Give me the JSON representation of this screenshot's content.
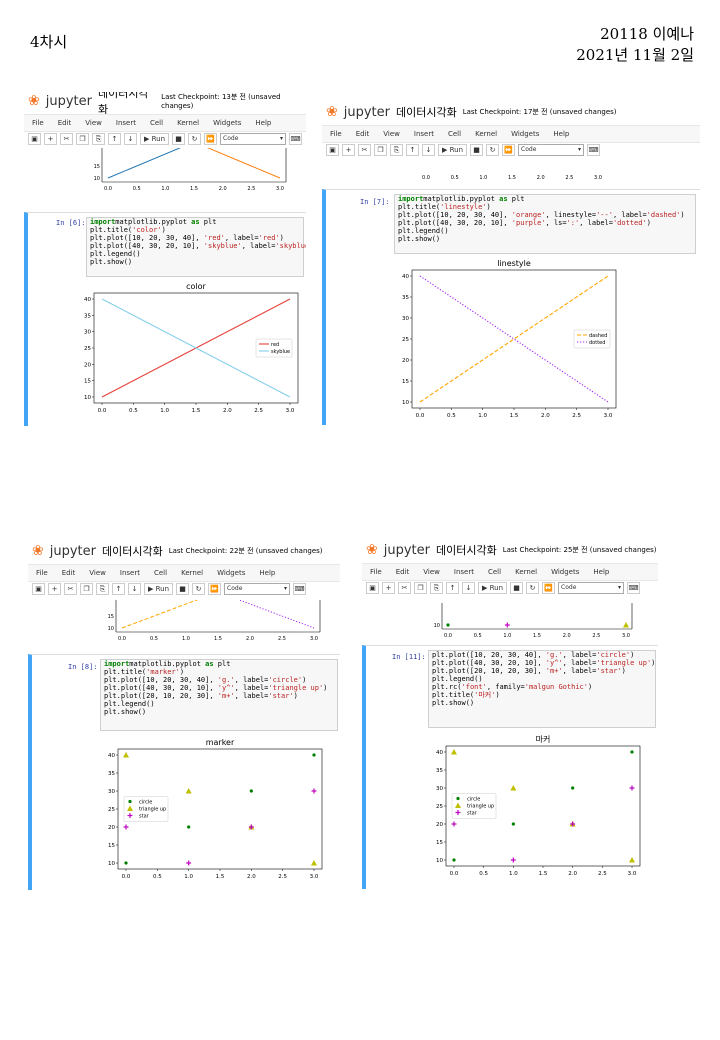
{
  "header": {
    "left": "4차시",
    "right_line1": "20118 이예나",
    "right_line2": "2021년 11월 2일"
  },
  "jupyter": {
    "logo_text": "jupyter",
    "menus": [
      "File",
      "Edit",
      "View",
      "Insert",
      "Cell",
      "Kernel",
      "Widgets",
      "Help"
    ],
    "run_label": "Run",
    "cell_type": "Code"
  },
  "panels": [
    {
      "notebook_title": "데이터시각화",
      "checkpoint": "Last Checkpoint: 13분 전  (unsaved changes)",
      "prompt": "In [6]:",
      "code": [
        [
          [
            "kw",
            "import"
          ],
          [
            "",
            "matplotlib.pyplot "
          ],
          [
            "kw",
            "as"
          ],
          [
            "",
            " plt"
          ]
        ],
        [
          [
            "",
            "plt.title("
          ],
          [
            "str",
            "'color'"
          ],
          [
            "",
            ")"
          ]
        ],
        [
          [
            "",
            "plt.plot([10, 20, 30, 40], "
          ],
          [
            "str",
            "'red'"
          ],
          [
            "",
            ", label="
          ],
          [
            "str",
            "'red'"
          ],
          [
            "",
            ")"
          ]
        ],
        [
          [
            "",
            "plt.plot([40, 30, 20, 10], "
          ],
          [
            "str",
            "'skyblue'"
          ],
          [
            "",
            ", label="
          ],
          [
            "str",
            "'skyblue'"
          ],
          [
            "",
            ")"
          ]
        ],
        [
          [
            "",
            "plt.legend()"
          ]
        ],
        [
          [
            "",
            "plt.show()"
          ]
        ]
      ]
    },
    {
      "notebook_title": "데이터시각화",
      "checkpoint": "Last Checkpoint: 17분 전  (unsaved changes)",
      "prompt": "In [7]:",
      "code": [
        [
          [
            "kw",
            "import"
          ],
          [
            "",
            "matplotlib.pyplot "
          ],
          [
            "kw",
            "as"
          ],
          [
            "",
            " plt"
          ]
        ],
        [
          [
            "",
            "plt.title("
          ],
          [
            "str",
            "'linestyle'"
          ],
          [
            "",
            ")"
          ]
        ],
        [
          [
            "",
            "plt.plot([10, 20, 30, 40], "
          ],
          [
            "str",
            "'orange'"
          ],
          [
            "",
            ", linestyle="
          ],
          [
            "str",
            "'--'"
          ],
          [
            "",
            ", label="
          ],
          [
            "str",
            "'dashed'"
          ],
          [
            "",
            ")"
          ]
        ],
        [
          [
            "",
            "plt.plot([40, 30, 20, 10], "
          ],
          [
            "str",
            "'purple'"
          ],
          [
            "",
            ", ls="
          ],
          [
            "str",
            "':'"
          ],
          [
            "",
            ", label="
          ],
          [
            "str",
            "'dotted'"
          ],
          [
            "",
            ")"
          ]
        ],
        [
          [
            "",
            "plt.legend()"
          ]
        ],
        [
          [
            "",
            "plt.show()"
          ]
        ]
      ]
    },
    {
      "notebook_title": "데이터시각화",
      "checkpoint": "Last Checkpoint: 22분 전  (unsaved changes)",
      "prompt": "In [8]:",
      "code": [
        [
          [
            "kw",
            "import"
          ],
          [
            "",
            "matplotlib.pyplot "
          ],
          [
            "kw",
            "as"
          ],
          [
            "",
            " plt"
          ]
        ],
        [
          [
            "",
            "plt.title("
          ],
          [
            "str",
            "'marker'"
          ],
          [
            "",
            ")"
          ]
        ],
        [
          [
            "",
            "plt.plot([10, 20, 30, 40], "
          ],
          [
            "str",
            "'g.'"
          ],
          [
            "",
            ", label="
          ],
          [
            "str",
            "'circle'"
          ],
          [
            "",
            ")"
          ]
        ],
        [
          [
            "",
            "plt.plot([40, 30, 20, 10], "
          ],
          [
            "str",
            "'y^'"
          ],
          [
            "",
            ", label="
          ],
          [
            "str",
            "'triangle up'"
          ],
          [
            "",
            ")"
          ]
        ],
        [
          [
            "",
            "plt.plot([20, 10, 20, 30], "
          ],
          [
            "str",
            "'m+'"
          ],
          [
            "",
            ", label="
          ],
          [
            "str",
            "'star'"
          ],
          [
            "",
            ")"
          ]
        ],
        [
          [
            "",
            "plt.legend()"
          ]
        ],
        [
          [
            "",
            "plt.show()"
          ]
        ]
      ]
    },
    {
      "notebook_title": "데이터시각화",
      "checkpoint": "Last Checkpoint: 25분 전  (unsaved changes)",
      "prompt": "In [11]:",
      "code": [
        [
          [
            "",
            "plt.plot([10, 20, 30, 40], "
          ],
          [
            "str",
            "'g.'"
          ],
          [
            "",
            ", label="
          ],
          [
            "str",
            "'circle'"
          ],
          [
            "",
            ")"
          ]
        ],
        [
          [
            "",
            "plt.plot([40, 30, 20, 10], "
          ],
          [
            "str",
            "'y^'"
          ],
          [
            "",
            ", label="
          ],
          [
            "str",
            "'triangle up'"
          ],
          [
            "",
            ")"
          ]
        ],
        [
          [
            "",
            "plt.plot([20, 10, 20, 30], "
          ],
          [
            "str",
            "'m+'"
          ],
          [
            "",
            ", label="
          ],
          [
            "str",
            "'star'"
          ],
          [
            "",
            ")"
          ]
        ],
        [
          [
            "",
            "plt.legend()"
          ]
        ],
        [
          [
            "",
            "plt.rc("
          ],
          [
            "str",
            "'font'"
          ],
          [
            "",
            ", family="
          ],
          [
            "str",
            "'malgun Gothic'"
          ],
          [
            "",
            ")"
          ]
        ],
        [
          [
            "",
            "plt.title("
          ],
          [
            "str",
            "'마커'"
          ],
          [
            "",
            ")"
          ]
        ],
        [
          [
            "",
            "plt.show()"
          ]
        ]
      ]
    }
  ],
  "chart_data": [
    {
      "type": "line",
      "title": "color",
      "x": [
        0,
        1,
        2,
        3
      ],
      "series": [
        {
          "name": "red",
          "values": [
            10,
            20,
            30,
            40
          ],
          "color": "#e8403a",
          "style": "solid"
        },
        {
          "name": "skyblue",
          "values": [
            40,
            30,
            20,
            10
          ],
          "color": "#87CEEB",
          "style": "solid"
        }
      ],
      "xticks": [
        "0.0",
        "0.5",
        "1.0",
        "1.5",
        "2.0",
        "2.5",
        "3.0"
      ],
      "yticks": [
        "10",
        "15",
        "20",
        "25",
        "30",
        "35",
        "40"
      ],
      "xlim": [
        0,
        3
      ],
      "ylim": [
        10,
        40
      ],
      "legend": "center-right"
    },
    {
      "type": "line",
      "title": "linestyle",
      "x": [
        0,
        1,
        2,
        3
      ],
      "series": [
        {
          "name": "dashed",
          "values": [
            10,
            20,
            30,
            40
          ],
          "color": "#FFA500",
          "style": "dashed"
        },
        {
          "name": "dotted",
          "values": [
            40,
            30,
            20,
            10
          ],
          "color": "#a020f0",
          "style": "dotted"
        }
      ],
      "xticks": [
        "0.0",
        "0.5",
        "1.0",
        "1.5",
        "2.0",
        "2.5",
        "3.0"
      ],
      "yticks": [
        "10",
        "15",
        "20",
        "25",
        "30",
        "35",
        "40"
      ],
      "xlim": [
        0,
        3
      ],
      "ylim": [
        10,
        40
      ],
      "legend": "center-right"
    },
    {
      "type": "scatter",
      "title": "marker",
      "x": [
        0,
        1,
        2,
        3
      ],
      "series": [
        {
          "name": "circle",
          "values": [
            10,
            20,
            30,
            40
          ],
          "color": "#008000",
          "marker": "point"
        },
        {
          "name": "triangle up",
          "values": [
            40,
            30,
            20,
            10
          ],
          "color": "#bfbf00",
          "marker": "triangle"
        },
        {
          "name": "star",
          "values": [
            20,
            10,
            20,
            30
          ],
          "color": "#bf00bf",
          "marker": "plus"
        }
      ],
      "xticks": [
        "0.0",
        "0.5",
        "1.0",
        "1.5",
        "2.0",
        "2.5",
        "3.0"
      ],
      "yticks": [
        "10",
        "15",
        "20",
        "25",
        "30",
        "35",
        "40"
      ],
      "xlim": [
        0,
        3
      ],
      "ylim": [
        10,
        40
      ],
      "legend": "center-left"
    },
    {
      "type": "scatter",
      "title": "마커",
      "x": [
        0,
        1,
        2,
        3
      ],
      "series": [
        {
          "name": "circle",
          "values": [
            10,
            20,
            30,
            40
          ],
          "color": "#008000",
          "marker": "point"
        },
        {
          "name": "triangle up",
          "values": [
            40,
            30,
            20,
            10
          ],
          "color": "#bfbf00",
          "marker": "triangle"
        },
        {
          "name": "star",
          "values": [
            20,
            10,
            20,
            30
          ],
          "color": "#bf00bf",
          "marker": "plus"
        }
      ],
      "xticks": [
        "0.0",
        "0.5",
        "1.0",
        "1.5",
        "2.0",
        "2.5",
        "3.0"
      ],
      "yticks": [
        "10",
        "15",
        "20",
        "25",
        "30",
        "35",
        "40"
      ],
      "xlim": [
        0,
        3
      ],
      "ylim": [
        10,
        40
      ],
      "legend": "center-left"
    }
  ],
  "partial_views": [
    {
      "type": "line",
      "x": [
        0,
        3
      ],
      "series": [
        {
          "values": [
            10,
            40
          ],
          "color": "#1f77b4"
        },
        {
          "values": [
            40,
            10
          ],
          "color": "#ff7f0e"
        }
      ],
      "xticks": [
        "0.0",
        "0.5",
        "1.0",
        "1.5",
        "2.0",
        "2.5",
        "3.0"
      ],
      "yticks": [
        "10",
        "15"
      ]
    },
    {
      "type": "line",
      "x": [],
      "series": [],
      "xticks": [
        "0.0",
        "0.5",
        "1.0",
        "1.5",
        "2.0",
        "2.5",
        "3.0"
      ],
      "yticks": []
    },
    {
      "type": "line",
      "x": [
        0,
        3
      ],
      "series": [
        {
          "values": [
            10,
            40
          ],
          "color": "#FFA500",
          "style": "dashed"
        },
        {
          "values": [
            40,
            10
          ],
          "color": "#a020f0",
          "style": "dotted"
        }
      ],
      "xticks": [
        "0.0",
        "0.5",
        "1.0",
        "1.5",
        "2.0",
        "2.5",
        "3.0"
      ],
      "yticks": [
        "10",
        "15"
      ]
    },
    {
      "type": "scatter",
      "x": [
        0,
        1,
        3
      ],
      "series": [
        {
          "values": [
            10,
            null,
            null
          ],
          "color": "#008000",
          "marker": "point"
        },
        {
          "values": [
            null,
            10,
            null
          ],
          "color": "#bf00bf",
          "marker": "plus"
        },
        {
          "values": [
            null,
            null,
            10
          ],
          "color": "#bfbf00",
          "marker": "triangle"
        }
      ],
      "xticks": [
        "0.0",
        "0.5",
        "1.0",
        "1.5",
        "2.0",
        "2.5",
        "3.0"
      ],
      "yticks": [
        "10"
      ]
    }
  ]
}
